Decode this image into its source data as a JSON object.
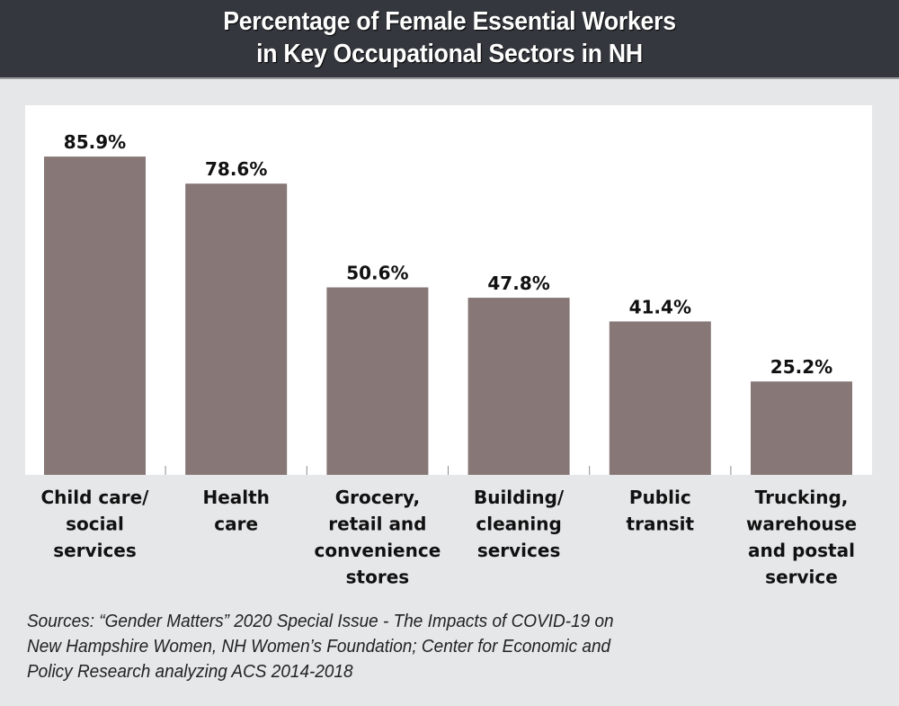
{
  "chart_data": {
    "type": "bar",
    "title": "Percentage of Female Essential Workers in Key Occupational Sectors in NH",
    "title_lines": [
      "Percentage of Female Essential Workers",
      "in Key Occupational Sectors in NH"
    ],
    "categories": [
      "Child care/ social services",
      "Health care",
      "Grocery, retail and convenience stores",
      "Building/ cleaning services",
      "Public transit",
      "Trucking, warehouse and postal service"
    ],
    "category_lines": [
      [
        "Child care/",
        "social",
        "services"
      ],
      [
        "Health",
        "care"
      ],
      [
        "Grocery,",
        "retail and",
        "convenience",
        "stores"
      ],
      [
        "Building/",
        "cleaning",
        "services"
      ],
      [
        "Public",
        "transit"
      ],
      [
        "Trucking,",
        "warehouse",
        "and postal",
        "service"
      ]
    ],
    "values": [
      85.9,
      78.6,
      50.6,
      47.8,
      41.4,
      25.2
    ],
    "data_labels": [
      "85.9%",
      "78.6%",
      "50.6%",
      "47.8%",
      "41.4%",
      "25.2%"
    ],
    "xlabel": "",
    "ylabel": "",
    "ylim": [
      0,
      100
    ],
    "grid": false,
    "legend": "none",
    "bar_color": "#877776",
    "source_lines": [
      "Sources: “Gender Matters” 2020 Special Issue - The Impacts of COVID-19 on",
      "New Hampshire Women, NH Women’s Foundation; Center for Economic and",
      "Policy Research analyzing ACS 2014-2018"
    ]
  },
  "colors": {
    "header_bg": "#34373d",
    "page_bg": "#e6e7e9",
    "plot_bg": "#ffffff",
    "text": "#111111"
  }
}
